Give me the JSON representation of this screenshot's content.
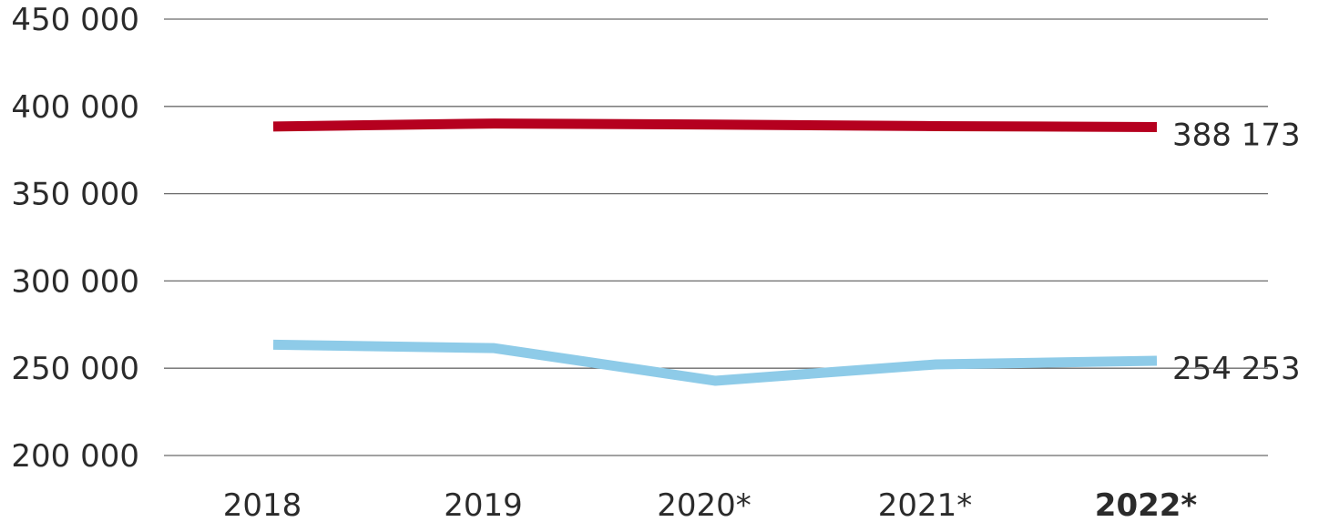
{
  "chart_data": {
    "type": "line",
    "title": "",
    "xlabel": "",
    "ylabel": "",
    "categories": [
      "2018",
      "2019",
      "2020*",
      "2021*",
      "2022*"
    ],
    "emphasized_category": "2022*",
    "ylim": [
      200000,
      450000
    ],
    "yticks": [
      200000,
      250000,
      300000,
      350000,
      400000,
      450000
    ],
    "ytick_labels": [
      "200 000",
      "250 000",
      "300 000",
      "350 000",
      "400 000",
      "450 000"
    ],
    "grid": true,
    "legend": "none",
    "series": [
      {
        "values": [
          388500,
          390200,
          389600,
          388700,
          388173
        ],
        "color": "#b5001f",
        "end_label": "388 173"
      },
      {
        "values": [
          263500,
          261500,
          242800,
          252200,
          254253
        ],
        "color": "#8ecbe8",
        "end_label": "254 253"
      }
    ]
  }
}
